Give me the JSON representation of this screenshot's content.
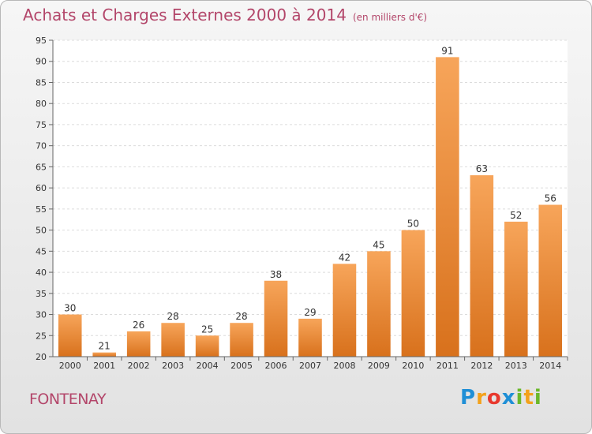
{
  "chart_data": {
    "type": "bar",
    "title": "Achats et Charges Externes 2000 à 2014",
    "subtitle": "(en milliers d'€)",
    "categories": [
      "2000",
      "2001",
      "2002",
      "2003",
      "2004",
      "2005",
      "2006",
      "2007",
      "2008",
      "2009",
      "2010",
      "2011",
      "2012",
      "2013",
      "2014"
    ],
    "values": [
      30,
      21,
      26,
      28,
      25,
      28,
      38,
      29,
      42,
      45,
      50,
      91,
      63,
      52,
      56
    ],
    "ylim": [
      20,
      95
    ],
    "yticks": [
      20,
      25,
      30,
      35,
      40,
      45,
      50,
      55,
      60,
      65,
      70,
      75,
      80,
      85,
      90,
      95
    ],
    "grid": true,
    "bar_color": "#f0913a"
  },
  "commune": "FONTENAY",
  "logo": {
    "letters": [
      "P",
      "r",
      "o",
      "x",
      "i",
      "t",
      "i"
    ],
    "colors": [
      "#1f8fd6",
      "#f3a21b",
      "#e8392e",
      "#1f8fd6",
      "#6bb82a",
      "#f3a21b",
      "#6bb82a"
    ]
  }
}
